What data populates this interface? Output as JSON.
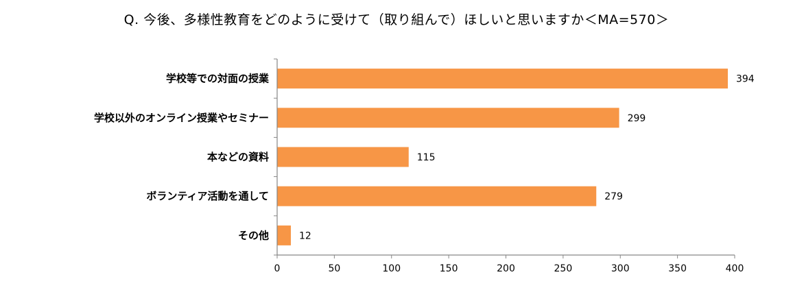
{
  "chart_data": {
    "type": "bar",
    "orientation": "horizontal",
    "title": "Q. 今後、多様性教育をどのように受けて（取り組んで）ほしいと思いますか＜MA=570＞",
    "categories": [
      "学校等での対面の授業",
      "学校以外のオンライン授業やセミナー",
      "本などの資料",
      "ボランティア活動を通して",
      "その他"
    ],
    "values": [
      394,
      299,
      115,
      279,
      12
    ],
    "xlim": [
      0,
      400
    ],
    "x_ticks": [
      0,
      50,
      100,
      150,
      200,
      250,
      300,
      350,
      400
    ],
    "bar_color": "#f79646",
    "axis_color": "#868686",
    "grid": false,
    "legend": "none",
    "xlabel": "",
    "ylabel": ""
  }
}
